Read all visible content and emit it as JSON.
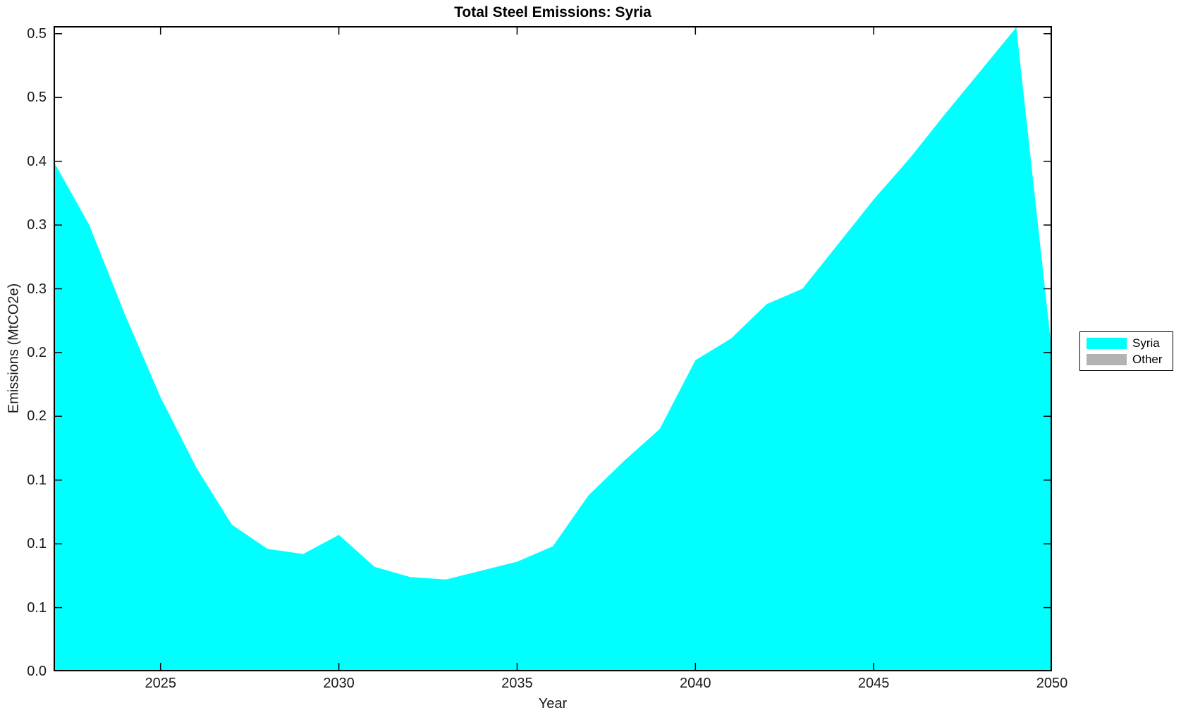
{
  "chart_data": {
    "type": "area",
    "title": "Total Steel Emissions: Syria",
    "xlabel": "Year",
    "ylabel": "Emissions (MtCO2e)",
    "xlim": [
      2022,
      2050
    ],
    "ylim": [
      0,
      0.506
    ],
    "grid": false,
    "legend_position": "right-outside",
    "x": [
      2022,
      2023,
      2024,
      2025,
      2026,
      2027,
      2028,
      2029,
      2030,
      2031,
      2032,
      2033,
      2034,
      2035,
      2036,
      2037,
      2038,
      2039,
      2040,
      2041,
      2042,
      2043,
      2044,
      2045,
      2046,
      2047,
      2048,
      2049,
      2050
    ],
    "series": [
      {
        "name": "Syria",
        "color": "#00ffff",
        "values": [
          0.4,
          0.35,
          0.28,
          0.215,
          0.16,
          0.115,
          0.096,
          0.092,
          0.107,
          0.082,
          0.074,
          0.072,
          0.079,
          0.086,
          0.098,
          0.138,
          0.165,
          0.19,
          0.244,
          0.261,
          0.288,
          0.3,
          0.335,
          0.37,
          0.402,
          0.437,
          0.471,
          0.505,
          0.25
        ]
      },
      {
        "name": "Other",
        "color": "#b3b3b3",
        "values": [
          0,
          0,
          0,
          0,
          0,
          0,
          0,
          0,
          0,
          0,
          0,
          0,
          0,
          0,
          0,
          0,
          0,
          0,
          0,
          0,
          0,
          0,
          0,
          0,
          0,
          0,
          0,
          0,
          0
        ]
      }
    ],
    "x_ticks": {
      "values": [
        2025,
        2030,
        2035,
        2040,
        2045,
        2050
      ],
      "labels": [
        "2025",
        "2030",
        "2035",
        "2040",
        "2045",
        "2050"
      ]
    },
    "y_ticks": {
      "values": [
        0.0,
        0.05,
        0.1,
        0.15,
        0.2,
        0.25,
        0.3,
        0.35,
        0.4,
        0.45,
        0.5
      ],
      "labels": [
        "0.0",
        "0.1",
        "0.1",
        "0.1",
        "0.2",
        "0.2",
        "0.3",
        "0.3",
        "0.4",
        "0.5",
        "0.5"
      ]
    },
    "axis_color": "#000000",
    "background_color": "#ffffff"
  }
}
